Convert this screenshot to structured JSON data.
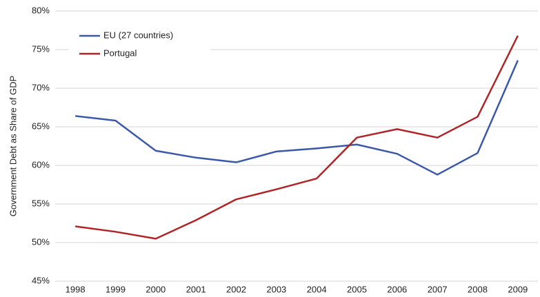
{
  "chart_data": {
    "type": "line",
    "y_label": "Government Debt as Share of GDP",
    "categories": [
      "1998",
      "1999",
      "2000",
      "2001",
      "2002",
      "2003",
      "2004",
      "2005",
      "2006",
      "2007",
      "2008",
      "2009"
    ],
    "series": [
      {
        "name": "EU (27 countries)",
        "color": "#3a57a8",
        "values": [
          66.4,
          65.8,
          61.9,
          61.0,
          60.4,
          61.8,
          62.2,
          62.7,
          61.5,
          58.8,
          61.6,
          73.6
        ]
      },
      {
        "name": "Portugal",
        "color": "#b02326",
        "values": [
          52.1,
          51.4,
          50.5,
          52.9,
          55.6,
          56.9,
          58.3,
          63.6,
          64.7,
          63.6,
          66.3,
          76.8
        ]
      }
    ],
    "ylim": [
      45,
      80
    ],
    "yticks": [
      {
        "value": 45,
        "label": "45%"
      },
      {
        "value": 50,
        "label": "50%"
      },
      {
        "value": 55,
        "label": "55%"
      },
      {
        "value": 60,
        "label": "60%"
      },
      {
        "value": 65,
        "label": "65%"
      },
      {
        "value": 70,
        "label": "70%"
      },
      {
        "value": 75,
        "label": "75%"
      },
      {
        "value": 80,
        "label": "80%"
      }
    ],
    "grid": true,
    "legend": "upper left"
  }
}
